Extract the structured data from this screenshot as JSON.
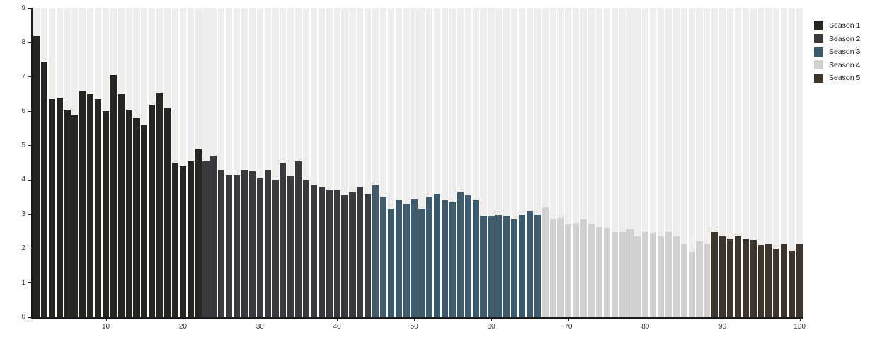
{
  "chart_data": {
    "type": "bar",
    "title": "",
    "xlabel": "",
    "ylabel": "",
    "x_range": [
      1,
      100
    ],
    "ylim": [
      0,
      9
    ],
    "grid": false,
    "legend_position": "top-right-outside",
    "background_stripe_color": "#efedeb",
    "axis_color": "#1c1c1c",
    "series": [
      {
        "name": "Season 1",
        "color": "#26251f",
        "episode_start": 1,
        "episode_end": 22,
        "values": [
          8.2,
          7.45,
          6.35,
          6.4,
          6.05,
          5.9,
          6.6,
          6.5,
          6.35,
          6.0,
          7.05,
          6.5,
          6.05,
          5.8,
          5.6,
          6.2,
          6.55,
          6.1,
          4.5,
          4.4,
          4.55,
          4.9
        ]
      },
      {
        "name": "Season 2",
        "color": "#3a393d",
        "episode_start": 23,
        "episode_end": 44,
        "values": [
          4.55,
          4.7,
          4.3,
          4.15,
          4.15,
          4.3,
          4.25,
          4.05,
          4.3,
          4.0,
          4.5,
          4.1,
          4.55,
          4.0,
          3.85,
          3.8,
          3.7,
          3.7,
          3.55,
          3.65,
          3.8,
          3.6
        ]
      },
      {
        "name": "Season 3",
        "color": "#3e5a6d",
        "episode_start": 45,
        "episode_end": 66,
        "values": [
          3.85,
          3.5,
          3.15,
          3.4,
          3.3,
          3.45,
          3.15,
          3.5,
          3.6,
          3.4,
          3.35,
          3.65,
          3.55,
          3.4,
          2.95,
          2.95,
          3.0,
          2.95,
          2.85,
          3.0,
          3.1,
          3.0
        ]
      },
      {
        "name": "Season 4",
        "color": "#d3d1cf",
        "episode_start": 67,
        "episode_end": 88,
        "values": [
          3.2,
          2.85,
          2.9,
          2.7,
          2.75,
          2.85,
          2.7,
          2.65,
          2.6,
          2.5,
          2.5,
          2.55,
          2.35,
          2.5,
          2.45,
          2.35,
          2.5,
          2.35,
          2.15,
          1.9,
          2.2,
          2.15
        ]
      },
      {
        "name": "Season 5",
        "color": "#3d352b",
        "episode_start": 89,
        "episode_end": 100,
        "values": [
          2.5,
          2.35,
          2.3,
          2.35,
          2.3,
          2.25,
          2.1,
          2.15,
          2.0,
          2.15,
          1.95,
          2.15
        ]
      }
    ]
  },
  "axes": {
    "y_ticks": [
      0,
      1,
      2,
      3,
      4,
      5,
      6,
      7,
      8,
      9
    ],
    "x_ticks": [
      10,
      20,
      30,
      40,
      50,
      60,
      70,
      80,
      90,
      100
    ]
  },
  "legend": {
    "items": [
      {
        "label": "Season 1",
        "color": "#26251f"
      },
      {
        "label": "Season 2",
        "color": "#3a393d"
      },
      {
        "label": "Season 3",
        "color": "#3e5a6d"
      },
      {
        "label": "Season 4",
        "color": "#d3d1cf"
      },
      {
        "label": "Season 5",
        "color": "#3d352b"
      }
    ]
  }
}
